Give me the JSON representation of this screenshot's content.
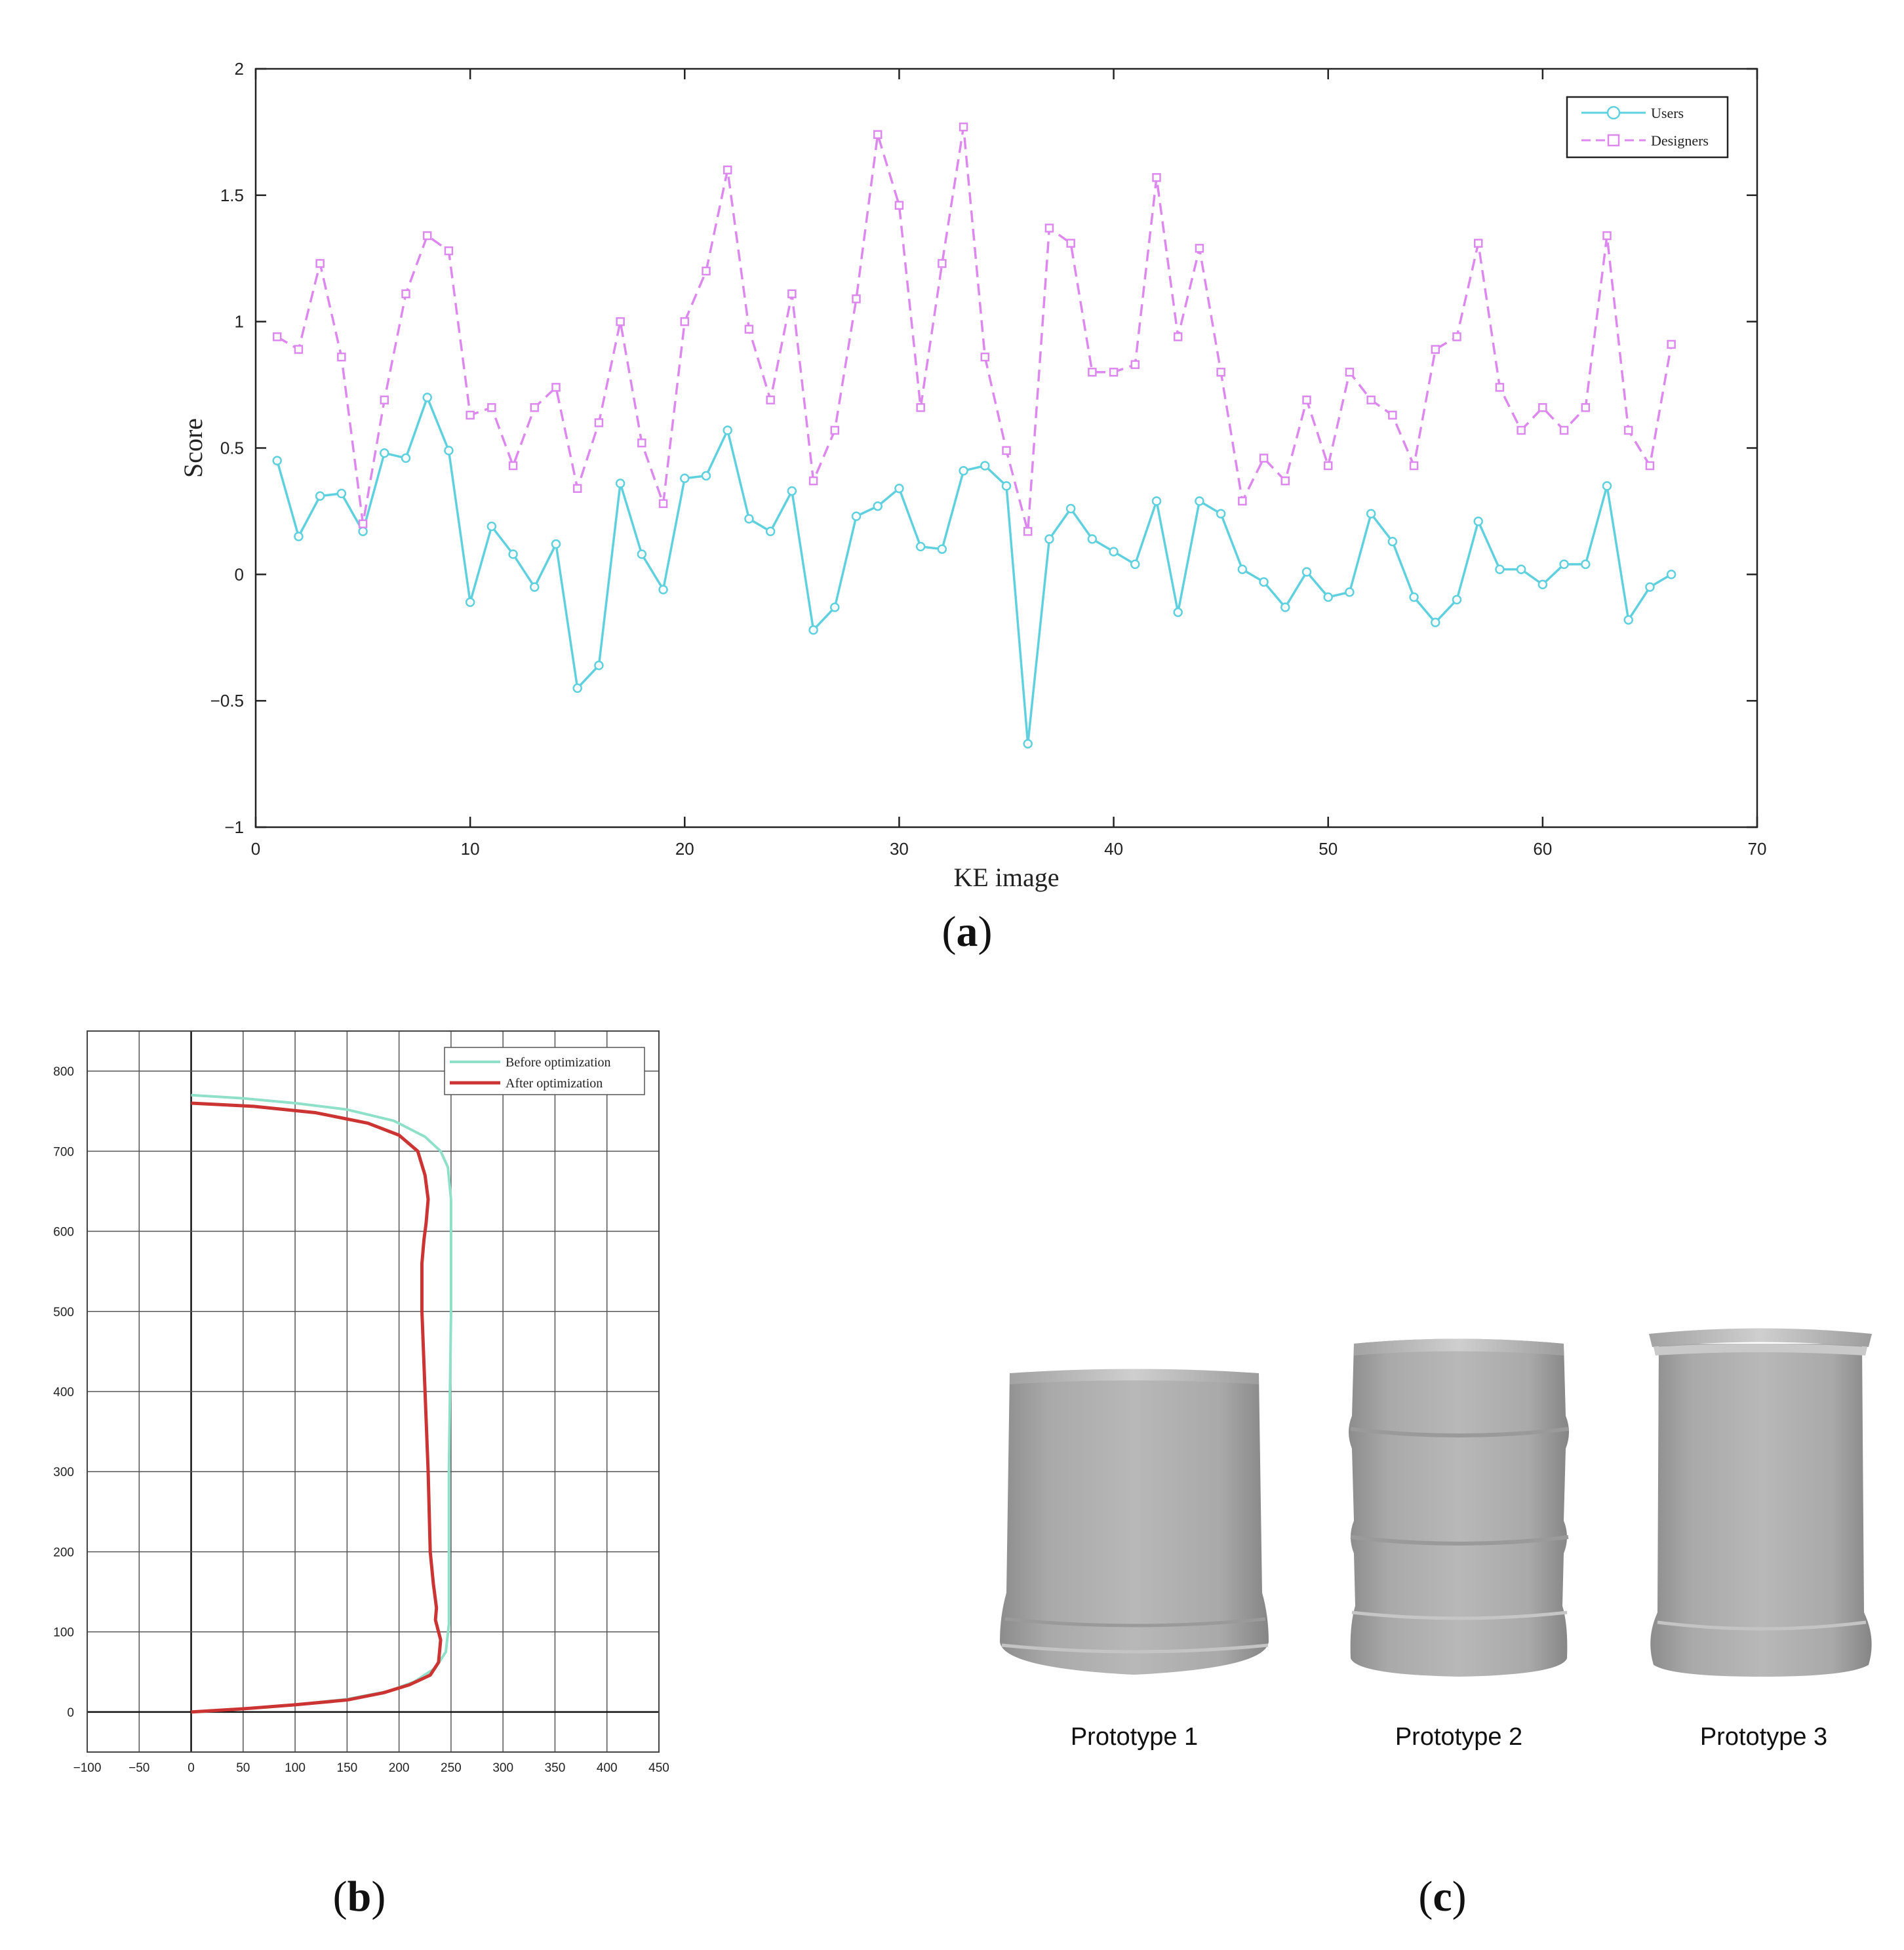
{
  "panels": {
    "a_label": "a",
    "b_label": "b",
    "c_label": "c"
  },
  "chart_data": [
    {
      "id": "a",
      "type": "line",
      "xlabel": "KE image",
      "ylabel": "Score",
      "xlim": [
        0,
        70
      ],
      "ylim": [
        -1,
        2
      ],
      "xticks": [
        0,
        10,
        20,
        30,
        40,
        50,
        60,
        70
      ],
      "yticks": [
        -1,
        -0.5,
        0,
        0.5,
        1,
        1.5,
        2
      ],
      "ytick_labels": [
        "−1",
        "−0.5",
        "0",
        "0.5",
        "1",
        "1.5",
        "2"
      ],
      "legend_position": "top-right",
      "x": [
        1,
        2,
        3,
        4,
        5,
        6,
        7,
        8,
        9,
        10,
        11,
        12,
        13,
        14,
        15,
        16,
        17,
        18,
        19,
        20,
        21,
        22,
        23,
        24,
        25,
        26,
        27,
        28,
        29,
        30,
        31,
        32,
        33,
        34,
        35,
        36,
        37,
        38,
        39,
        40,
        41,
        42,
        43,
        44,
        45,
        46,
        47,
        48,
        49,
        50,
        51,
        52,
        53,
        54,
        55,
        56,
        57,
        58,
        59,
        60,
        61,
        62,
        63,
        64,
        65,
        66
      ],
      "series": [
        {
          "name": "Users",
          "color": "#5fd0de",
          "marker": "circle",
          "dash": "solid",
          "values": [
            0.45,
            0.15,
            0.31,
            0.32,
            0.17,
            0.48,
            0.46,
            0.7,
            0.49,
            -0.11,
            0.19,
            0.08,
            -0.05,
            0.12,
            -0.45,
            -0.36,
            0.36,
            0.08,
            -0.06,
            0.38,
            0.39,
            0.57,
            0.22,
            0.17,
            0.33,
            -0.22,
            -0.13,
            0.23,
            0.27,
            0.34,
            0.11,
            0.1,
            0.41,
            0.43,
            0.35,
            -0.67,
            0.14,
            0.26,
            0.14,
            0.09,
            0.04,
            0.29,
            -0.15,
            0.29,
            0.24,
            0.02,
            -0.03,
            -0.13,
            0.01,
            -0.09,
            -0.07,
            0.24,
            0.13,
            -0.09,
            -0.19,
            -0.1,
            0.21,
            0.02,
            0.02,
            -0.04,
            0.04,
            0.04,
            0.35,
            -0.18,
            -0.05,
            0.0
          ]
        },
        {
          "name": "Designers",
          "color": "#dd88ee",
          "marker": "square",
          "dash": "dashed",
          "values": [
            0.94,
            0.89,
            1.23,
            0.86,
            0.2,
            0.69,
            1.11,
            1.34,
            1.28,
            0.63,
            0.66,
            0.43,
            0.66,
            0.74,
            0.34,
            0.6,
            1.0,
            0.52,
            0.28,
            1.0,
            1.2,
            1.6,
            0.97,
            0.69,
            1.11,
            0.37,
            0.57,
            1.09,
            1.74,
            1.46,
            0.66,
            1.23,
            1.77,
            0.86,
            0.49,
            0.17,
            1.37,
            1.31,
            0.8,
            0.8,
            0.83,
            1.57,
            0.94,
            1.29,
            0.8,
            0.29,
            0.46,
            0.37,
            0.69,
            0.43,
            0.8,
            0.69,
            0.63,
            0.43,
            0.89,
            0.94,
            1.31,
            0.74,
            0.57,
            0.66,
            0.57,
            0.66,
            1.34,
            0.57,
            0.43,
            0.91
          ]
        }
      ]
    },
    {
      "id": "b",
      "type": "line",
      "xlim": [
        -100,
        450
      ],
      "ylim": [
        -50,
        850
      ],
      "xticks": [
        -100,
        -50,
        0,
        50,
        100,
        150,
        200,
        250,
        300,
        350,
        400,
        450
      ],
      "xtick_labels": [
        "−100",
        "−50",
        "0",
        "50",
        "100",
        "150",
        "200",
        "250",
        "300",
        "350",
        "400",
        "450"
      ],
      "yticks": [
        0,
        100,
        200,
        300,
        400,
        500,
        600,
        700,
        800
      ],
      "grid": true,
      "legend_position": "top-right",
      "series": [
        {
          "name": "Before optimization",
          "color": "#8fe0c8",
          "points": [
            [
              0,
              0
            ],
            [
              50,
              4
            ],
            [
              100,
              9
            ],
            [
              150,
              16
            ],
            [
              190,
              26
            ],
            [
              215,
              38
            ],
            [
              235,
              55
            ],
            [
              245,
              75
            ],
            [
              248,
              110
            ],
            [
              248,
              200
            ],
            [
              248,
              300
            ],
            [
              249,
              400
            ],
            [
              250,
              500
            ],
            [
              250,
              560
            ],
            [
              250,
              640
            ],
            [
              247,
              680
            ],
            [
              240,
              700
            ],
            [
              225,
              718
            ],
            [
              195,
              738
            ],
            [
              150,
              752
            ],
            [
              100,
              760
            ],
            [
              50,
              766
            ],
            [
              0,
              770
            ]
          ]
        },
        {
          "name": "After optimization",
          "color": "#cc3333",
          "points": [
            [
              0,
              0
            ],
            [
              50,
              4
            ],
            [
              100,
              9
            ],
            [
              150,
              15
            ],
            [
              185,
              24
            ],
            [
              210,
              34
            ],
            [
              230,
              46
            ],
            [
              238,
              62
            ],
            [
              240,
              90
            ],
            [
              235,
              115
            ],
            [
              236,
              130
            ],
            [
              233,
              160
            ],
            [
              230,
              200
            ],
            [
              228,
              300
            ],
            [
              225,
              400
            ],
            [
              222,
              500
            ],
            [
              222,
              560
            ],
            [
              224,
              590
            ],
            [
              226,
              610
            ],
            [
              228,
              640
            ],
            [
              225,
              670
            ],
            [
              218,
              700
            ],
            [
              200,
              720
            ],
            [
              170,
              735
            ],
            [
              120,
              748
            ],
            [
              60,
              756
            ],
            [
              0,
              760
            ]
          ]
        }
      ]
    }
  ],
  "prototypes": [
    {
      "label": "Prototype 1"
    },
    {
      "label": "Prototype 2"
    },
    {
      "label": "Prototype 3"
    }
  ]
}
